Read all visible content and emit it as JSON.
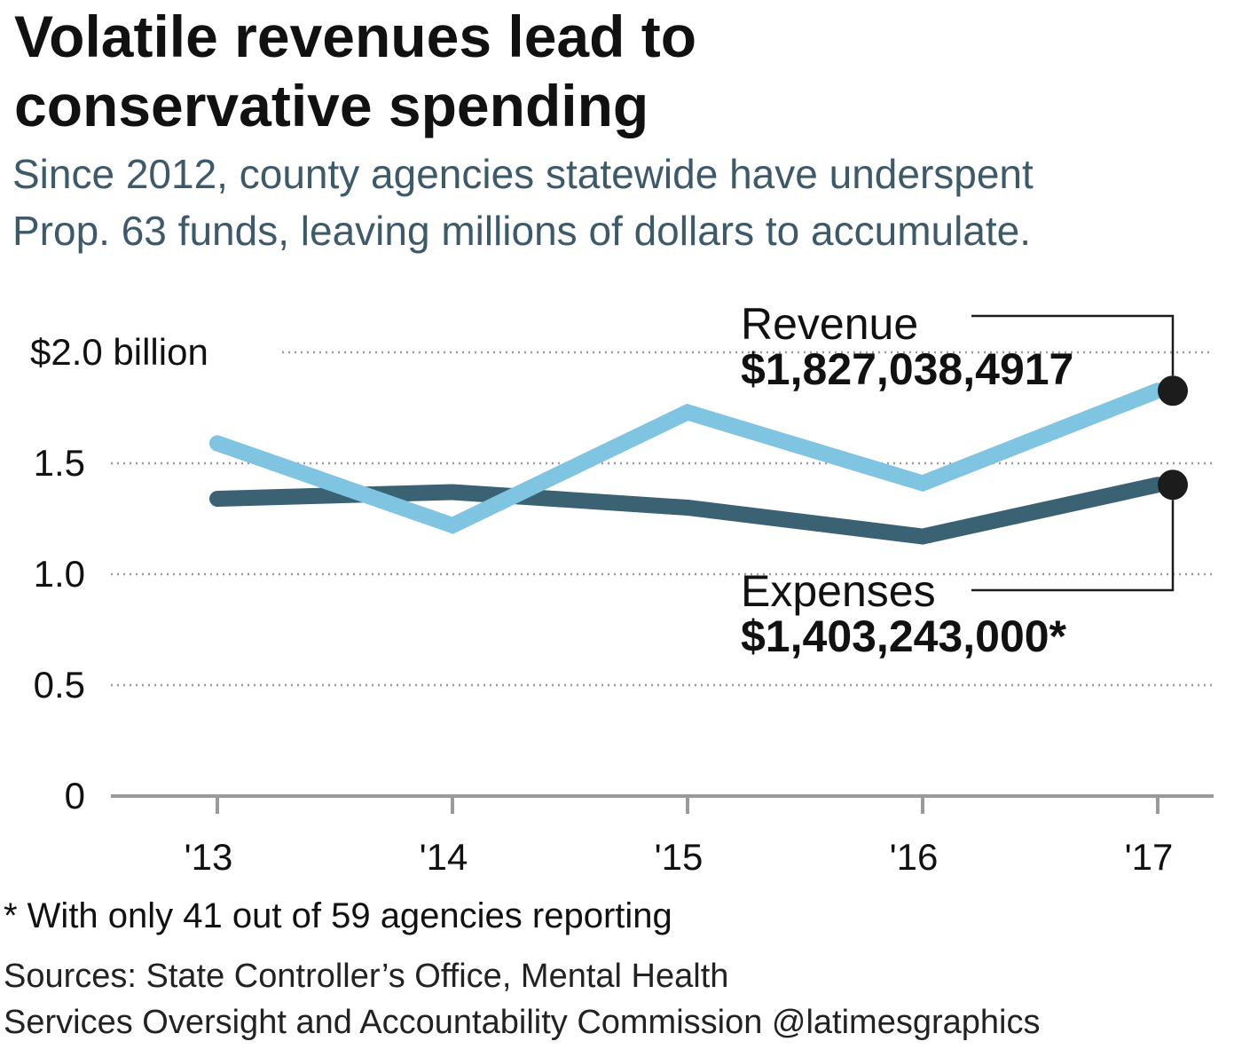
{
  "title": {
    "line1": "Volatile revenues lead to",
    "line2": "conservative spending"
  },
  "subtitle": {
    "line1": "Since 2012, county agencies statewide have underspent",
    "line2": "Prop. 63 funds, leaving millions of dollars to accumulate."
  },
  "chart_data": {
    "type": "line",
    "x": [
      "'13",
      "'14",
      "'15",
      "'16",
      "'17"
    ],
    "ylim": [
      0,
      2.0
    ],
    "y_ticks": [
      {
        "value": 2.0,
        "label": "$2.0 billion"
      },
      {
        "value": 1.5,
        "label": "1.5"
      },
      {
        "value": 1.0,
        "label": "1.0"
      },
      {
        "value": 0.5,
        "label": "0.5"
      },
      {
        "value": 0,
        "label": "0"
      }
    ],
    "grid": true,
    "series": [
      {
        "name": "Revenue",
        "color": "#7fc4e0",
        "values": [
          1.59,
          1.22,
          1.73,
          1.41,
          1.827
        ],
        "end_label": "$1,827,038,4917"
      },
      {
        "name": "Expenses",
        "color": "#3a6272",
        "values": [
          1.34,
          1.37,
          1.3,
          1.17,
          1.403
        ],
        "end_label": "$1,403,243,000*"
      }
    ]
  },
  "footnote": "* With only 41 out of 59 agencies reporting",
  "sources": {
    "line1": "Sources: State Controller’s Office, Mental Health",
    "line2": "Services Oversight and Accountability Commission @latimesgraphics"
  }
}
